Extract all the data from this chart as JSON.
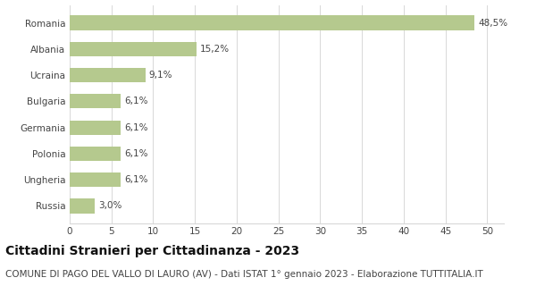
{
  "categories": [
    "Russia",
    "Ungheria",
    "Polonia",
    "Germania",
    "Bulgaria",
    "Ucraina",
    "Albania",
    "Romania"
  ],
  "values": [
    3.0,
    6.1,
    6.1,
    6.1,
    6.1,
    9.1,
    15.2,
    48.5
  ],
  "labels": [
    "3,0%",
    "6,1%",
    "6,1%",
    "6,1%",
    "6,1%",
    "9,1%",
    "15,2%",
    "48,5%"
  ],
  "bar_color": "#b5c98e",
  "background_color": "#ffffff",
  "grid_color": "#d8d8d8",
  "text_color": "#444444",
  "title": "Cittadini Stranieri per Cittadinanza - 2023",
  "subtitle": "COMUNE DI PAGO DEL VALLO DI LAURO (AV) - Dati ISTAT 1° gennaio 2023 - Elaborazione TUTTITALIA.IT",
  "xlim": [
    0,
    52
  ],
  "xticks": [
    0,
    5,
    10,
    15,
    20,
    25,
    30,
    35,
    40,
    45,
    50
  ],
  "title_fontsize": 10,
  "subtitle_fontsize": 7.5,
  "label_fontsize": 7.5,
  "tick_fontsize": 7.5,
  "ylabel_fontsize": 7.5
}
